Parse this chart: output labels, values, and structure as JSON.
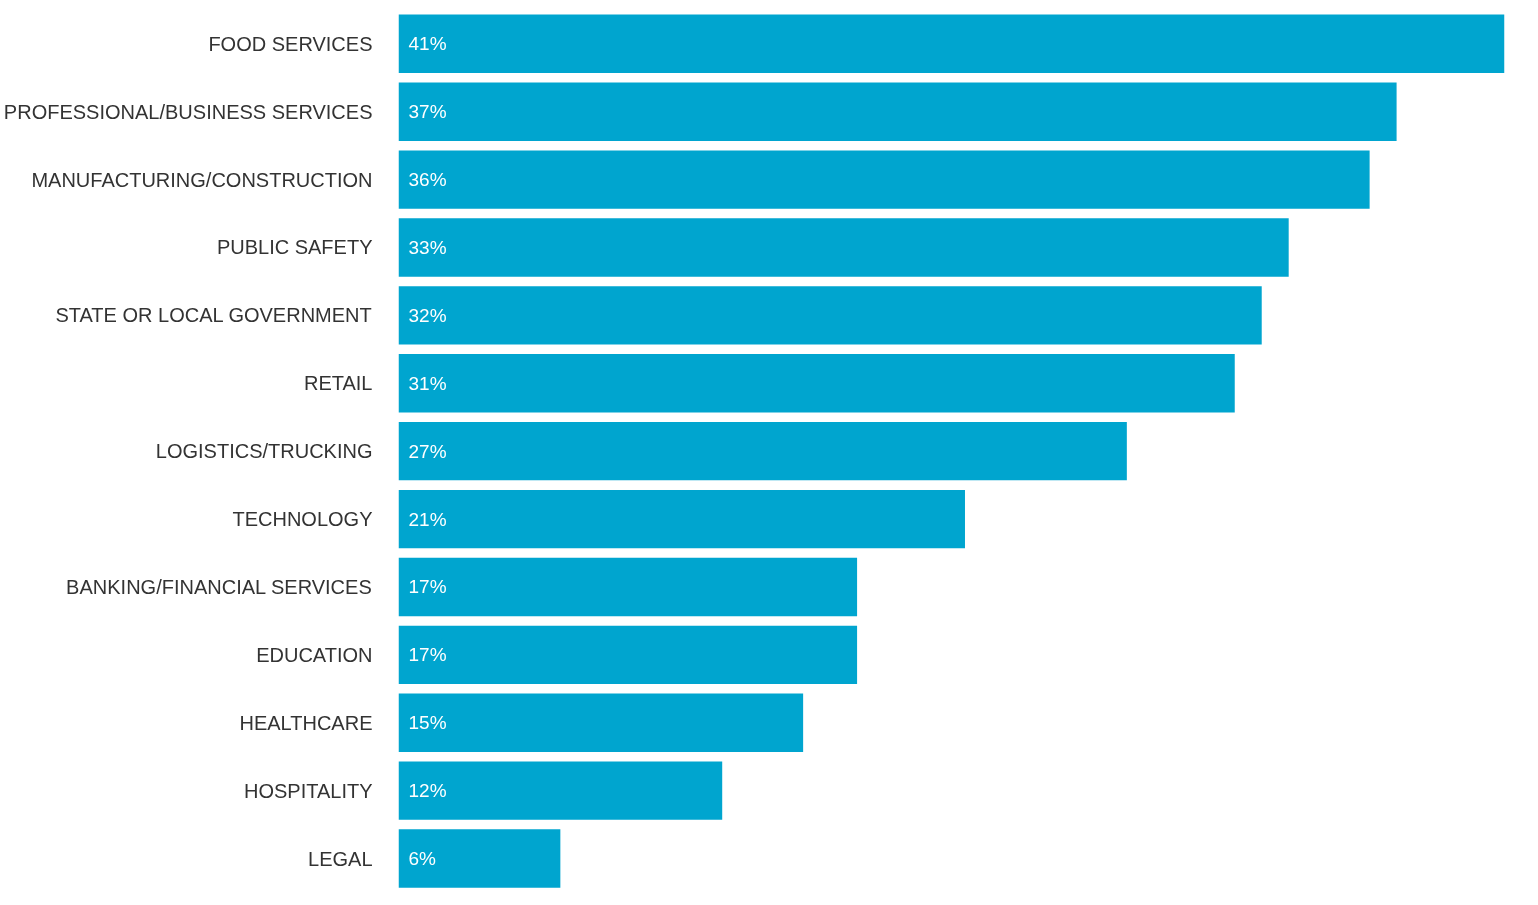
{
  "chart_data": {
    "type": "bar",
    "orientation": "horizontal",
    "categories": [
      "FOOD SERVICES",
      "PROFESSIONAL/BUSINESS SERVICES",
      "MANUFACTURING/CONSTRUCTION",
      "PUBLIC SAFETY",
      "STATE OR LOCAL GOVERNMENT",
      "RETAIL",
      "LOGISTICS/TRUCKING",
      "TECHNOLOGY",
      "BANKING/FINANCIAL SERVICES",
      "EDUCATION",
      "HEALTHCARE",
      "HOSPITALITY",
      "LEGAL"
    ],
    "values": [
      41,
      37,
      36,
      33,
      32,
      31,
      27,
      21,
      17,
      17,
      15,
      12,
      6
    ],
    "value_labels": [
      "41%",
      "37%",
      "36%",
      "33%",
      "32%",
      "31%",
      "27%",
      "21%",
      "17%",
      "17%",
      "15%",
      "12%",
      "6%"
    ],
    "color": "#00a5cf",
    "grid": false
  }
}
